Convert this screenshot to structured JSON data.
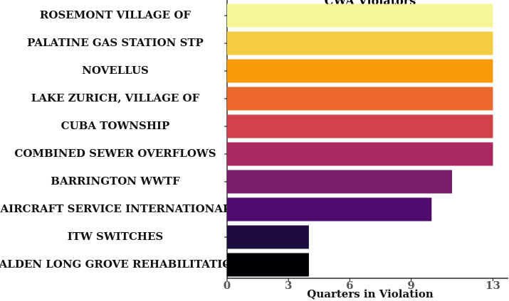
{
  "chart_data": {
    "type": "barh",
    "title": "CWA Violators",
    "categories": [
      "ROSEMONT VILLAGE OF",
      "PALATINE GAS STATION STP",
      "NOVELLUS",
      "LAKE ZURICH, VILLAGE OF",
      "CUBA TOWNSHIP",
      "COMBINED SEWER OVERFLOWS",
      "BARRINGTON WWTF",
      "AIRCRAFT SERVICE INTERNATIONAL",
      "ITW SWITCHES",
      "ALDEN LONG GROVE REHABILITATIO"
    ],
    "values": [
      13,
      13,
      13,
      13,
      13,
      13,
      11,
      10,
      4,
      4
    ],
    "colors": [
      "#f6f598",
      "#f3cd41",
      "#f99a08",
      "#eb6a2b",
      "#d0424a",
      "#a8285f",
      "#7a1c6c",
      "#4f0c6c",
      "#1d0c40",
      "#000004"
    ],
    "xlabel": "Quarters in Violation",
    "xlim": [
      0,
      13.75
    ],
    "xticks": [
      0,
      3,
      6,
      9,
      13
    ]
  }
}
